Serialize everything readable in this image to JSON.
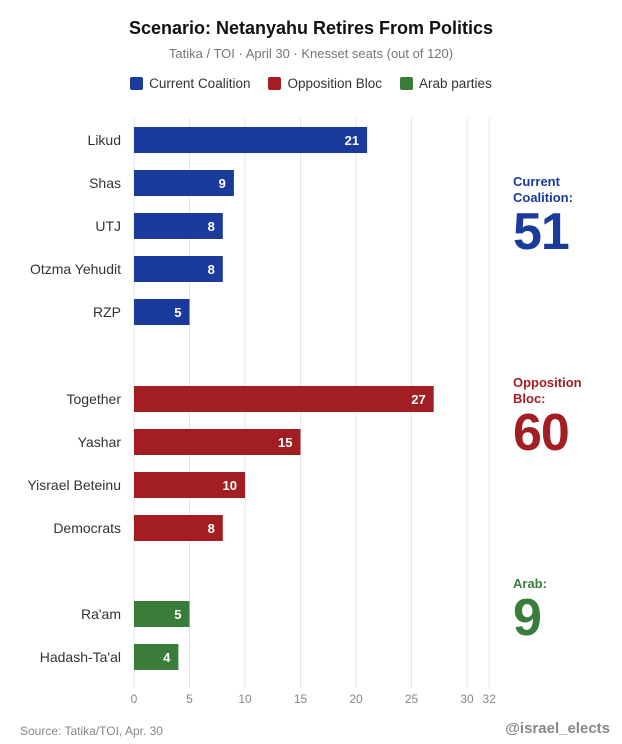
{
  "chart_data": {
    "type": "bar",
    "orientation": "horizontal",
    "title": "Scenario: Netanyahu Retires From Politics",
    "subtitle": "Tatika / TOI · April 30 · Knesset seats (out of 120)",
    "xlim": [
      0,
      32
    ],
    "xticks": [
      0,
      5,
      10,
      15,
      20,
      25,
      30,
      32
    ],
    "grid": true,
    "legend_position": "top",
    "groups": [
      {
        "name": "Current Coalition",
        "color": "#1a3a9c",
        "total_label": "Current\nCoalition:",
        "total": "51",
        "bars": [
          {
            "label": "Likud",
            "value": 21
          },
          {
            "label": "Shas",
            "value": 9
          },
          {
            "label": "UTJ",
            "value": 8
          },
          {
            "label": "Otzma Yehudit",
            "value": 8
          },
          {
            "label": "RZP",
            "value": 5
          }
        ]
      },
      {
        "name": "Opposition Bloc",
        "color": "#a31e22",
        "total_label": "Opposition\nBloc:",
        "total": "60",
        "bars": [
          {
            "label": "Together",
            "value": 27
          },
          {
            "label": "Yashar",
            "value": 15
          },
          {
            "label": "Yisrael Beteinu",
            "value": 10
          },
          {
            "label": "Democrats",
            "value": 8
          }
        ]
      },
      {
        "name": "Arab parties",
        "color": "#3a7d3a",
        "total_label": "Arab:",
        "total": "9",
        "bars": [
          {
            "label": "Ra'am",
            "value": 5
          },
          {
            "label": "Hadash-Ta'al",
            "value": 4
          }
        ]
      }
    ]
  },
  "footer": {
    "source": "Source: Tatika/TOI, Apr. 30",
    "handle": "@israel_elects"
  }
}
